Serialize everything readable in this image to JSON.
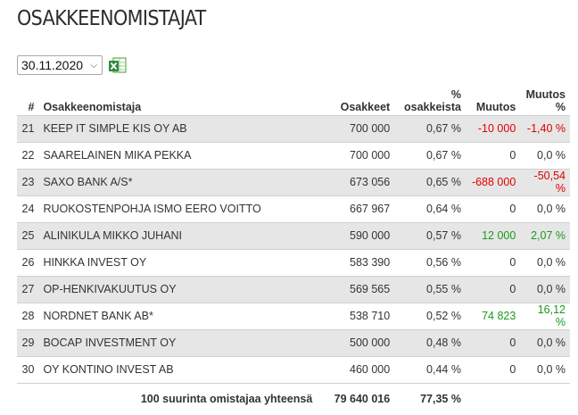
{
  "page": {
    "title": "OSAKKEENOMISTAJAT"
  },
  "controls": {
    "date_value": "30.11.2020",
    "excel_icon": "excel-export-icon"
  },
  "table": {
    "headers": {
      "index": "#",
      "name": "Osakkeenomistaja",
      "shares": "Osakkeet",
      "pct_line1": "%",
      "pct_line2": "osakkeista",
      "change": "Muutos",
      "change_pct_line1": "Muutos",
      "change_pct_line2": "%"
    },
    "rows": [
      {
        "index": "21",
        "name": "KEEP IT SIMPLE KIS OY AB",
        "shares": "700 000",
        "pct": "0,67 %",
        "change": "-10 000",
        "change_pct": "-1,40 %",
        "trend": "neg"
      },
      {
        "index": "22",
        "name": "SAARELAINEN MIKA PEKKA",
        "shares": "700 000",
        "pct": "0,67 %",
        "change": "0",
        "change_pct": "0,0 %",
        "trend": "none"
      },
      {
        "index": "23",
        "name": "SAXO BANK A/S*",
        "shares": "673 056",
        "pct": "0,65 %",
        "change": "-688 000",
        "change_pct": "-50,54 %",
        "trend": "neg"
      },
      {
        "index": "24",
        "name": "RUOKOSTENPOHJA ISMO EERO VOITTO",
        "shares": "667 967",
        "pct": "0,64 %",
        "change": "0",
        "change_pct": "0,0 %",
        "trend": "none"
      },
      {
        "index": "25",
        "name": "ALINIKULA MIKKO JUHANI",
        "shares": "590 000",
        "pct": "0,57 %",
        "change": "12 000",
        "change_pct": "2,07 %",
        "trend": "pos"
      },
      {
        "index": "26",
        "name": "HINKKA INVEST OY",
        "shares": "583 390",
        "pct": "0,56 %",
        "change": "0",
        "change_pct": "0,0 %",
        "trend": "none"
      },
      {
        "index": "27",
        "name": "OP-HENKIVAKUUTUS OY",
        "shares": "569 565",
        "pct": "0,55 %",
        "change": "0",
        "change_pct": "0,0 %",
        "trend": "none"
      },
      {
        "index": "28",
        "name": "NORDNET BANK AB*",
        "shares": "538 710",
        "pct": "0,52 %",
        "change": "74 823",
        "change_pct": "16,12 %",
        "trend": "pos"
      },
      {
        "index": "29",
        "name": "BOCAP INVESTMENT OY",
        "shares": "500 000",
        "pct": "0,48 %",
        "change": "0",
        "change_pct": "0,0 %",
        "trend": "none"
      },
      {
        "index": "30",
        "name": "OY KONTINO INVEST AB",
        "shares": "460 000",
        "pct": "0,44 %",
        "change": "0",
        "change_pct": "0,0 %",
        "trend": "none"
      }
    ],
    "footer": {
      "label": "100 suurinta omistajaa yhteensä",
      "shares": "79 640 016",
      "pct": "77,35 %"
    }
  },
  "colors": {
    "negative": "#e00000",
    "positive": "#1a9a1a",
    "row_stripe": "#e6e6e6"
  }
}
